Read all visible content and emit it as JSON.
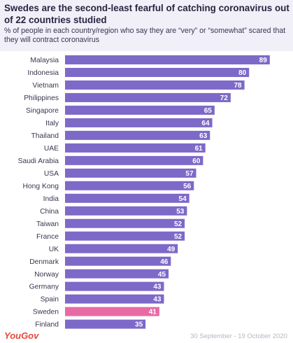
{
  "header": {
    "title": "Swedes are the second-least fearful of catching coronavirus out of 22 countries studied",
    "subtitle": "% of people in each country/region who say they are “very” or “somewhat” scared that they will contract coronavirus"
  },
  "footer": {
    "logo": "YouGov",
    "date_range": "30 September - 19 October 2020"
  },
  "colors": {
    "bar": "#7d69c8",
    "highlight": "#e86aa5",
    "header_bg": "#f1eff8"
  },
  "chart_data": {
    "type": "bar",
    "orientation": "horizontal",
    "categories": [
      "Malaysia",
      "Indonesia",
      "Vietnam",
      "Philippines",
      "Singapore",
      "Italy",
      "Thailand",
      "UAE",
      "Saudi Arabia",
      "USA",
      "Hong Kong",
      "India",
      "China",
      "Taiwan",
      "France",
      "UK",
      "Denmark",
      "Norway",
      "Germany",
      "Spain",
      "Sweden",
      "Finland"
    ],
    "values": [
      89,
      80,
      78,
      72,
      65,
      64,
      63,
      61,
      60,
      57,
      56,
      54,
      53,
      52,
      52,
      49,
      46,
      45,
      43,
      43,
      41,
      35
    ],
    "highlight_category": "Sweden",
    "xlim": [
      0,
      100
    ],
    "grid": false,
    "data_labels": true
  }
}
